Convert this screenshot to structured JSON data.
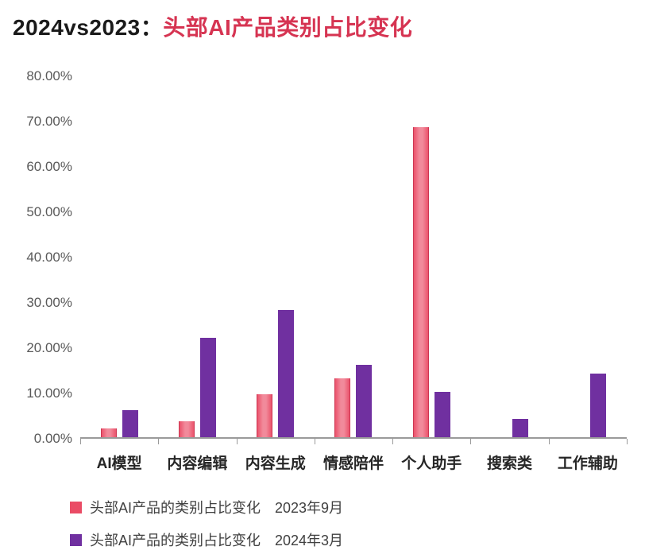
{
  "title": {
    "prefix": "2024vs2023：",
    "main": "头部AI产品类别占比变化",
    "prefix_color": "#1a1a1a",
    "main_color": "#d63452"
  },
  "chart_data": {
    "type": "bar",
    "title": "2024vs2023：头部AI产品类别占比变化",
    "categories": [
      "AI模型",
      "内容编辑",
      "内容生成",
      "情感陪伴",
      "个人助手",
      "搜索类",
      "工作辅助"
    ],
    "series": [
      {
        "name": "头部AI产品的类别占比变化　2023年9月",
        "color": "#ea4b65",
        "values": [
          2,
          3.5,
          9.5,
          13,
          68.5,
          0,
          0
        ]
      },
      {
        "name": "头部AI产品的类别占比变化　2024年3月",
        "color": "#7030a0",
        "values": [
          6,
          22,
          28,
          16,
          10,
          4,
          14
        ]
      }
    ],
    "ylim": [
      0,
      80
    ],
    "ytick_step": 10,
    "yticks": [
      "0.00%",
      "10.00%",
      "20.00%",
      "30.00%",
      "40.00%",
      "50.00%",
      "60.00%",
      "70.00%",
      "80.00%"
    ],
    "grid": false,
    "legend_position": "bottom-left",
    "xlabel": "",
    "ylabel": ""
  }
}
